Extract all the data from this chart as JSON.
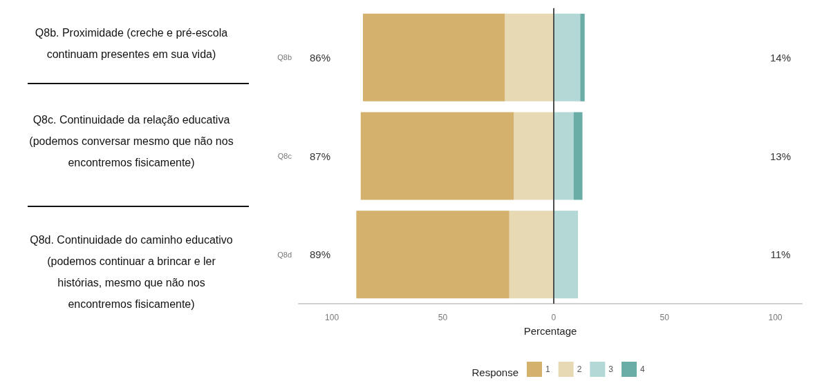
{
  "chart_data": {
    "type": "bar",
    "orientation": "horizontal",
    "stacked": true,
    "xlabel": "Percentage",
    "legend_title": "Response",
    "legend": "bottom",
    "grid": false,
    "categories": [
      "Q8b",
      "Q8c",
      "Q8d"
    ],
    "series": [
      {
        "name": "2",
        "color": "#e8d9b5",
        "values": [
          -22,
          -18,
          -20
        ]
      },
      {
        "name": "1",
        "color": "#d4b26e",
        "values": [
          -64,
          -69,
          -69
        ]
      },
      {
        "name": "3",
        "color": "#b3d8d6",
        "values": [
          12,
          9,
          11
        ]
      },
      {
        "name": "4",
        "color": "#6aada6",
        "values": [
          2,
          4,
          0
        ]
      }
    ],
    "xlim": [
      -115,
      112
    ],
    "xticks": [
      {
        "value": -100,
        "label": "100"
      },
      {
        "value": -50,
        "label": "50"
      },
      0,
      50,
      100
    ],
    "ref_lines": [
      {
        "axis": "x",
        "value": 0,
        "color": "#222222"
      }
    ],
    "annotations": [
      "86%",
      "87%",
      "89%",
      "14%",
      "13%",
      "11%",
      "Q8b. Proximidade (creche e pré-escola continuam presentes em sua vida)",
      "Q8c. Continuidade da relação educativa (podemos conversar mesmo que não nos encontremos fisicamente)",
      "Q8d. Continuidade do caminho educativo (podemos continuar a brincar e ler histórias, mesmo que não nos encontremos fisicamente)"
    ]
  }
}
